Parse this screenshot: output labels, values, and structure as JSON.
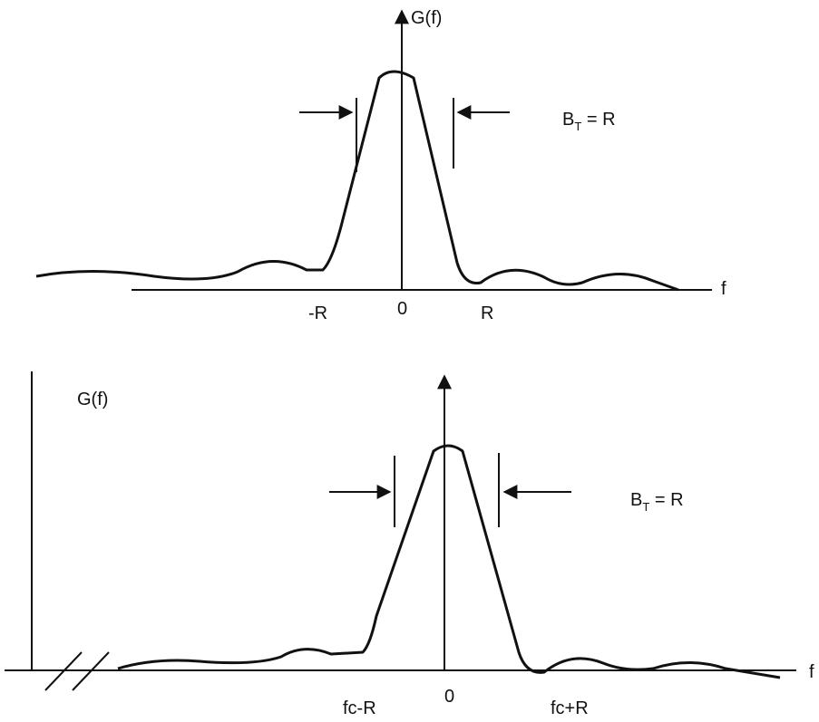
{
  "top_diagram": {
    "y_axis_label": "G(f)",
    "x_axis_label": "f",
    "bandwidth_label": {
      "symbol": "B",
      "subscript": "T",
      "rest": " = R"
    },
    "ticks": [
      "-R",
      "0",
      "R"
    ]
  },
  "bottom_diagram": {
    "y_axis_label": "G(f)",
    "x_axis_label": "f",
    "bandwidth_label": {
      "symbol": "B",
      "subscript": "T",
      "rest": " = R"
    },
    "ticks": [
      "fc-R",
      "0",
      "fc+R"
    ]
  }
}
